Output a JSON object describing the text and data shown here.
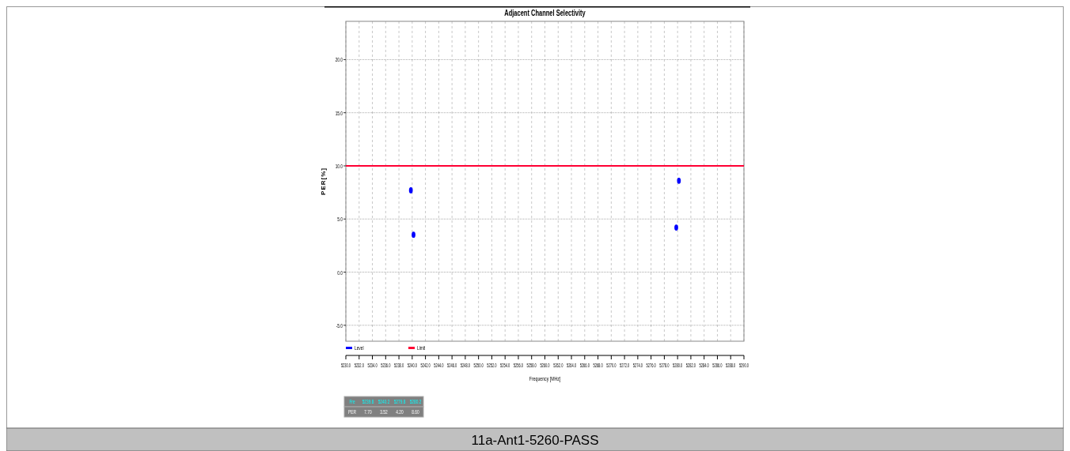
{
  "chart_data": {
    "type": "scatter",
    "title": "Adjacent Channel Selectivity",
    "xlabel": "Frequency [MHz]",
    "ylabel": "PER[%]",
    "x": [
      5239.8,
      5240.2,
      5279.8,
      5280.2
    ],
    "series": [
      {
        "name": "Level",
        "color": "#0000ff",
        "values": [
          7.7,
          3.52,
          4.2,
          8.6
        ]
      }
    ],
    "value_labels": [
      "7.70",
      "3.52",
      "4.20",
      "8.60"
    ],
    "ref_lines": [
      {
        "axis": "y",
        "value": 10,
        "label": "Limit",
        "color": "#ff0033"
      }
    ],
    "xlim": [
      5230,
      5290
    ],
    "xticks": [
      {
        "value": 5230,
        "label": "5230.0"
      },
      {
        "value": 5232,
        "label": "5232.0"
      },
      {
        "value": 5234,
        "label": "5234.0"
      },
      {
        "value": 5236,
        "label": "5236.0"
      },
      {
        "value": 5238,
        "label": "5238.0"
      },
      {
        "value": 5240,
        "label": "5240.0"
      },
      {
        "value": 5242,
        "label": "5242.0"
      },
      {
        "value": 5244,
        "label": "5244.0"
      },
      {
        "value": 5246,
        "label": "5246.0"
      },
      {
        "value": 5248,
        "label": "5248.0"
      },
      {
        "value": 5250,
        "label": "5250.0"
      },
      {
        "value": 5252,
        "label": "5252.0"
      },
      {
        "value": 5254,
        "label": "5254.0"
      },
      {
        "value": 5256,
        "label": "5256.0"
      },
      {
        "value": 5258,
        "label": "5258.0"
      },
      {
        "value": 5260,
        "label": "5260.0"
      },
      {
        "value": 5262,
        "label": "5262.0"
      },
      {
        "value": 5264,
        "label": "5264.0"
      },
      {
        "value": 5266,
        "label": "5266.0"
      },
      {
        "value": 5268,
        "label": "5268.0"
      },
      {
        "value": 5270,
        "label": "5270.0"
      },
      {
        "value": 5272,
        "label": "5272.0"
      },
      {
        "value": 5274,
        "label": "5274.0"
      },
      {
        "value": 5276,
        "label": "5276.0"
      },
      {
        "value": 5278,
        "label": "5278.0"
      },
      {
        "value": 5280,
        "label": "5280.0"
      },
      {
        "value": 5282,
        "label": "5282.0"
      },
      {
        "value": 5284,
        "label": "5284.0"
      },
      {
        "value": 5286,
        "label": "5286.0"
      },
      {
        "value": 5288,
        "label": "5288.0"
      },
      {
        "value": 5290,
        "label": "5290.0"
      }
    ],
    "ylim": [
      -6.5,
      23.6
    ],
    "yticks": [
      {
        "value": -5,
        "label": "-5.0"
      },
      {
        "value": 0,
        "label": "0.0"
      },
      {
        "value": 5,
        "label": "5.0"
      },
      {
        "value": 10,
        "label": "10.0"
      },
      {
        "value": 15,
        "label": "15.0"
      },
      {
        "value": 20,
        "label": "20.0"
      }
    ],
    "grid": true,
    "legend": "bottom left",
    "marker": "circle",
    "annotations": [
      "Fre",
      "5239.8",
      "5240.2",
      "5279.8",
      "5280.2",
      "PER",
      "11a-Ant1-5260-PASS"
    ]
  }
}
